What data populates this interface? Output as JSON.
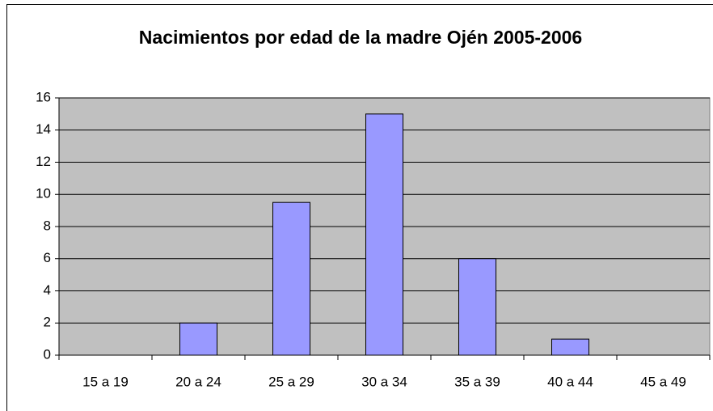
{
  "chart_data": {
    "type": "bar",
    "title": "Nacimientos por edad de la madre Ojén 2005-2006",
    "categories": [
      "15 a 19",
      "20 a 24",
      "25 a 29",
      "30 a 34",
      "35 a 39",
      "40 a 44",
      "45 a 49"
    ],
    "values": [
      0,
      2,
      9.5,
      15,
      6,
      1,
      0
    ],
    "color": "#9999ff",
    "ylim": [
      0,
      16
    ],
    "yticks": [
      0,
      2,
      4,
      6,
      8,
      10,
      12,
      14,
      16
    ],
    "grid": true
  }
}
